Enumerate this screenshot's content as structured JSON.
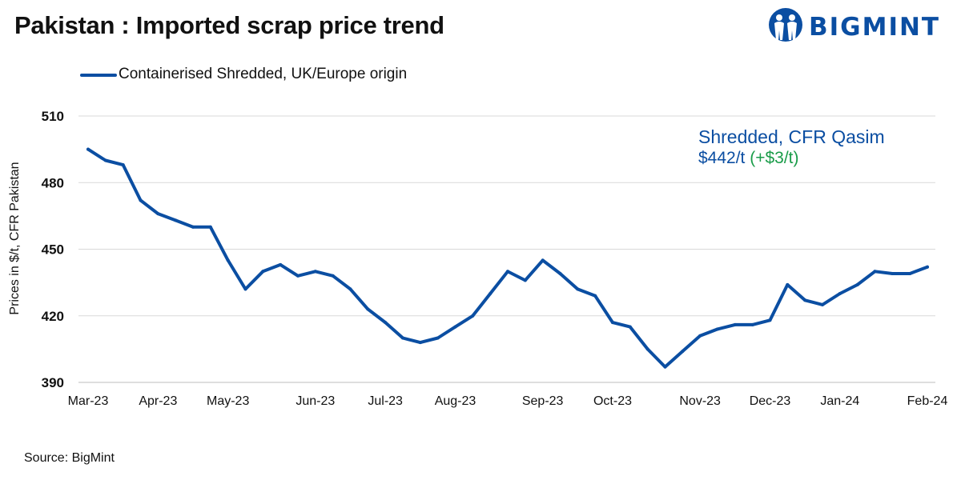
{
  "header": {
    "title": "Pakistan : Imported scrap price trend",
    "brand": "BIGMINT",
    "brand_color": "#0b4ea2",
    "logo_icon": "bigmint-people-icon"
  },
  "annotation": {
    "title": "Shredded, CFR Qasim",
    "value": "$442/t",
    "change": "(+$3/t)",
    "change_color": "#1a9c49"
  },
  "footer": {
    "source": "Source: BigMint"
  },
  "chart_data": {
    "type": "line",
    "ylabel": "Prices in $/t, CFR Pakistan",
    "ylim": [
      390,
      510
    ],
    "yticks": [
      390,
      420,
      450,
      480,
      510
    ],
    "y_gridlines": true,
    "legend_position": "top-left",
    "x_tick_labels": [
      "Mar-23",
      "Apr-23",
      "May-23",
      "Jun-23",
      "Jul-23",
      "Aug-23",
      "Sep-23",
      "Oct-23",
      "Nov-23",
      "Dec-23",
      "Jan-24",
      "Feb-24"
    ],
    "series": [
      {
        "name": "Containerised Shredded, UK/Europe origin",
        "color": "#0b4ea2",
        "values": [
          495,
          490,
          488,
          472,
          466,
          463,
          460,
          460,
          445,
          432,
          440,
          443,
          438,
          440,
          438,
          432,
          423,
          417,
          410,
          408,
          410,
          415,
          420,
          430,
          440,
          436,
          445,
          439,
          432,
          429,
          417,
          415,
          405,
          397,
          404,
          411,
          414,
          416,
          416,
          418,
          434,
          427,
          425,
          430,
          434,
          440,
          439,
          439,
          442
        ]
      }
    ]
  }
}
